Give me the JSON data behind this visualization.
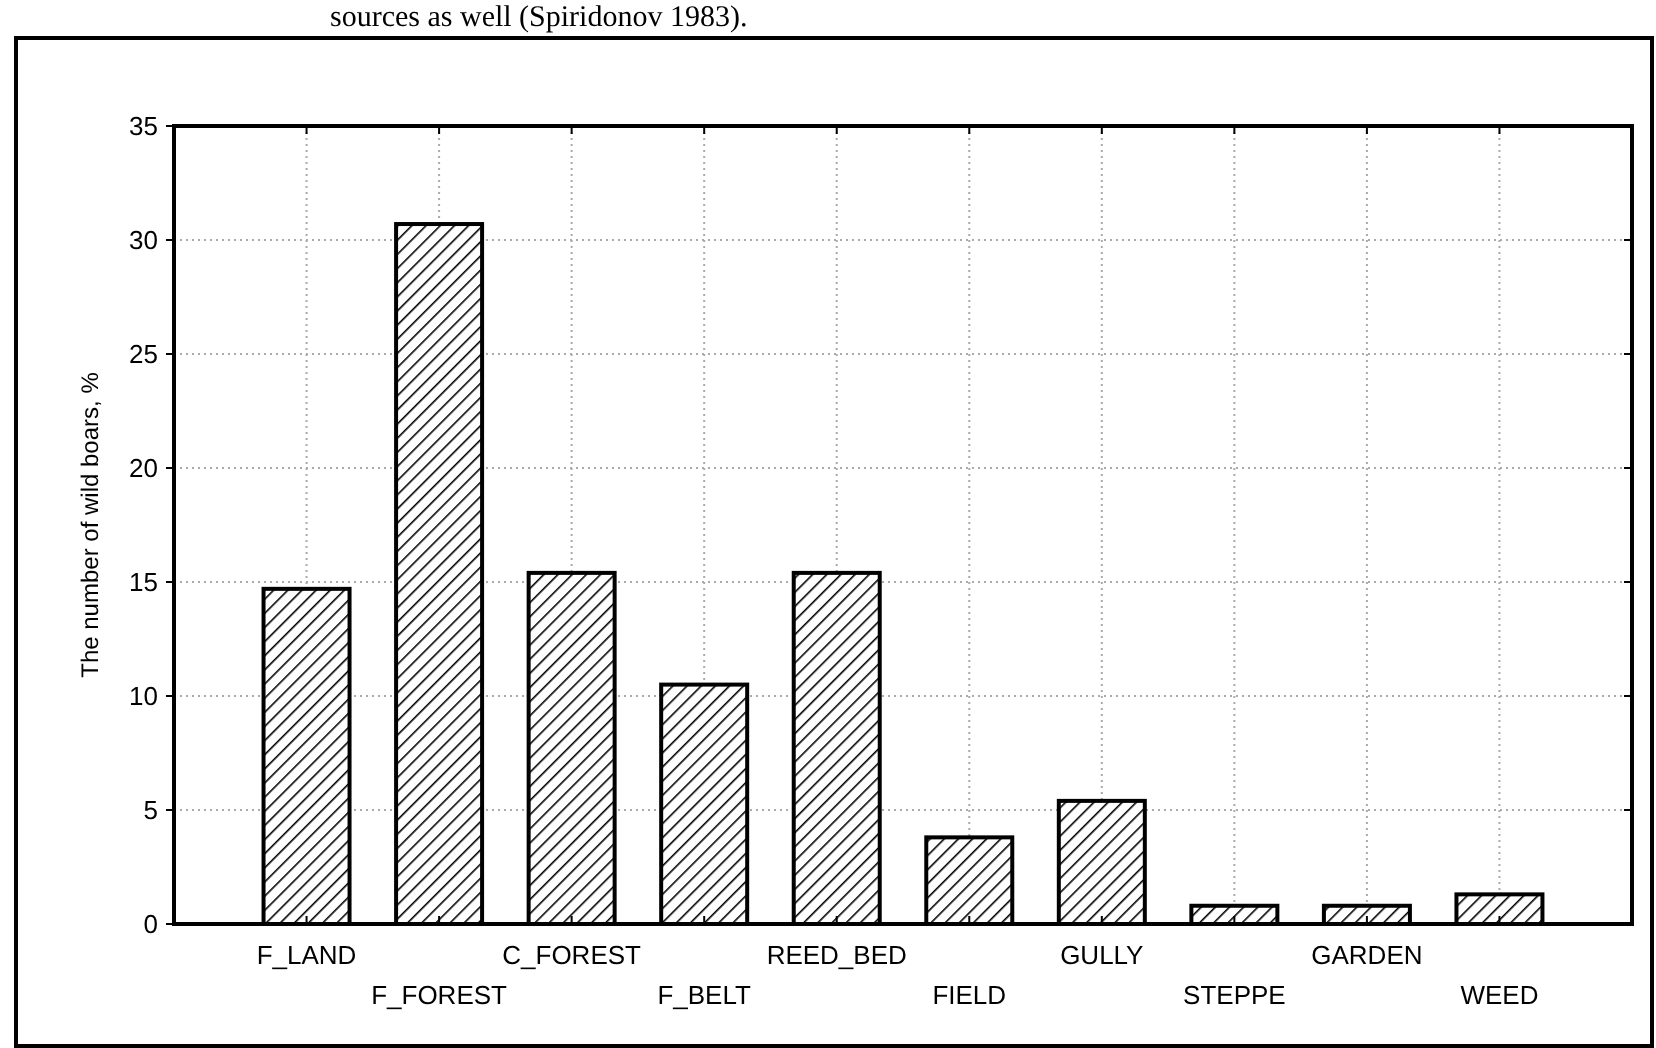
{
  "chart_data": {
    "type": "bar",
    "ylabel": "The number of wild boars, %",
    "annotations": [
      "sources as well (Spiridonov 1983)."
    ],
    "categories": [
      "F_LAND",
      "F_FOREST",
      "C_FOREST",
      "F_BELT",
      "REED_BED",
      "FIELD",
      "GULLY",
      "STEPPE",
      "GARDEN",
      "WEED"
    ],
    "values": [
      14.7,
      30.7,
      15.4,
      10.5,
      15.4,
      3.8,
      5.4,
      0.8,
      0.8,
      1.3
    ],
    "color": "#000000",
    "ylim": [
      0,
      35
    ],
    "yticks": [
      0,
      5,
      10,
      15,
      20,
      25,
      30,
      35
    ],
    "grid": true
  }
}
